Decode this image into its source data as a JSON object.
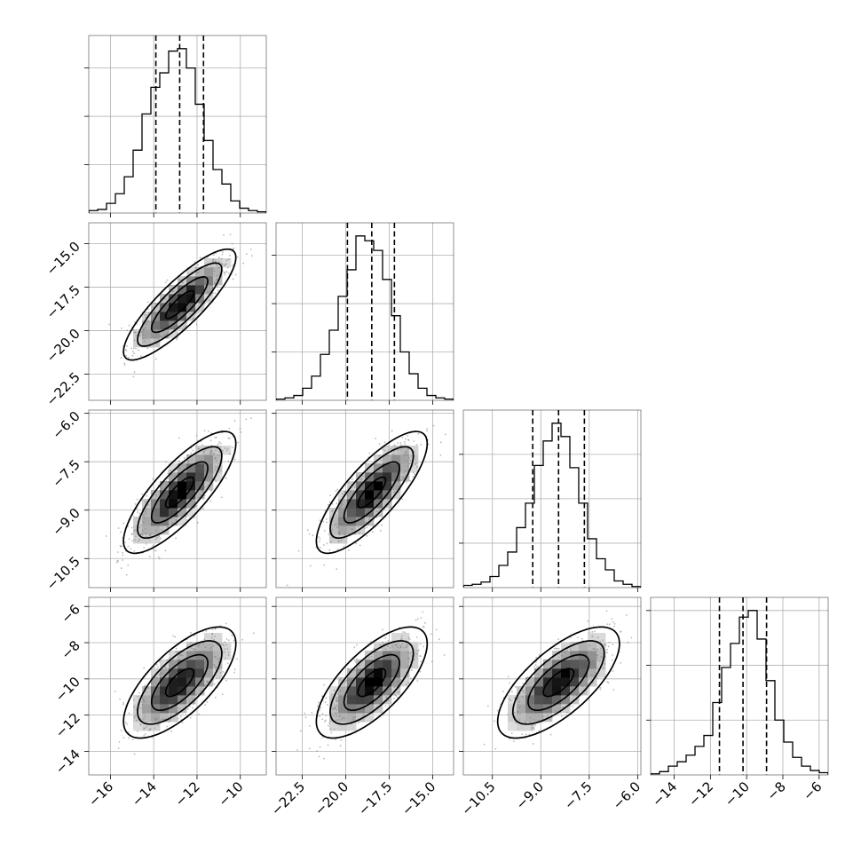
{
  "chart_data": {
    "type": "corner",
    "title": "",
    "grid": true,
    "parameters": [
      {
        "xlabel": "",
        "range": [
          -17.0,
          -8.8
        ],
        "ticks": [
          -16,
          -14,
          -12,
          -10
        ],
        "tick_labels": [
          "−16",
          "−14",
          "−12",
          "−10"
        ],
        "quantiles": [
          -13.9,
          -12.8,
          -11.7
        ],
        "histogram": {
          "bin_edges": [
            -17.0,
            -16.59,
            -16.18,
            -15.77,
            -15.36,
            -14.95,
            -14.54,
            -14.13,
            -13.72,
            -13.31,
            -12.9,
            -12.49,
            -12.08,
            -11.67,
            -11.26,
            -10.85,
            -10.44,
            -10.03,
            -9.62,
            -9.21,
            -8.8
          ],
          "counts": [
            2,
            3,
            8,
            16,
            30,
            52,
            82,
            104,
            116,
            134,
            136,
            120,
            90,
            60,
            36,
            24,
            10,
            4,
            2,
            1
          ]
        }
      },
      {
        "xlabel": "",
        "range": [
          -24.0,
          -13.8
        ],
        "ticks": [
          -22.5,
          -20.0,
          -17.5,
          -15.0
        ],
        "tick_labels": [
          "−22.5",
          "−20.0",
          "−17.5",
          "−15.0"
        ],
        "quantiles": [
          -19.9,
          -18.5,
          -17.2
        ],
        "histogram": {
          "bin_edges": [
            -24.0,
            -23.49,
            -22.98,
            -22.47,
            -21.96,
            -21.45,
            -20.94,
            -20.43,
            -19.92,
            -19.41,
            -18.9,
            -18.39,
            -17.88,
            -17.37,
            -16.86,
            -16.35,
            -15.84,
            -15.33,
            -14.82,
            -14.31,
            -13.8
          ],
          "counts": [
            1,
            2,
            4,
            10,
            20,
            38,
            58,
            86,
            108,
            136,
            132,
            124,
            100,
            70,
            40,
            22,
            10,
            4,
            2,
            1
          ]
        }
      },
      {
        "xlabel": "",
        "range": [
          -11.4,
          -5.9
        ],
        "ticks": [
          -10.5,
          -9.0,
          -7.5,
          -6.0
        ],
        "tick_labels": [
          "−10.5",
          "−9.0",
          "−7.5",
          "−6.0"
        ],
        "quantiles": [
          -9.25,
          -8.45,
          -7.65
        ],
        "histogram": {
          "bin_edges": [
            -11.4,
            -11.125,
            -10.85,
            -10.575,
            -10.3,
            -10.025,
            -9.75,
            -9.475,
            -9.2,
            -8.925,
            -8.65,
            -8.375,
            -8.1,
            -7.825,
            -7.55,
            -7.275,
            -7.0,
            -6.725,
            -6.45,
            -6.175,
            -5.9
          ],
          "counts": [
            2,
            3,
            5,
            10,
            20,
            32,
            54,
            76,
            110,
            132,
            148,
            136,
            108,
            76,
            44,
            26,
            16,
            6,
            3,
            1
          ]
        }
      },
      {
        "xlabel": "",
        "range": [
          -15.3,
          -5.5
        ],
        "ticks": [
          -14,
          -12,
          -10,
          -8,
          -6
        ],
        "tick_labels": [
          "−14",
          "−12",
          "−10",
          "−8",
          "−6"
        ],
        "quantiles": [
          -11.5,
          -10.2,
          -8.9
        ],
        "histogram": {
          "bin_edges": [
            -15.3,
            -14.81,
            -14.32,
            -13.83,
            -13.34,
            -12.85,
            -12.36,
            -11.87,
            -11.38,
            -10.89,
            -10.4,
            -9.91,
            -9.42,
            -8.93,
            -8.44,
            -7.95,
            -7.46,
            -6.97,
            -6.48,
            -5.99,
            -5.5
          ],
          "counts": [
            1,
            3,
            8,
            12,
            18,
            26,
            36,
            66,
            98,
            120,
            144,
            150,
            124,
            86,
            50,
            30,
            16,
            8,
            4,
            2
          ]
        }
      }
    ],
    "correlations": [
      {
        "x": 0,
        "y": 1,
        "rho": 0.85
      },
      {
        "x": 0,
        "y": 2,
        "rho": 0.8
      },
      {
        "x": 1,
        "y": 2,
        "rho": 0.8
      },
      {
        "x": 0,
        "y": 3,
        "rho": 0.7
      },
      {
        "x": 1,
        "y": 3,
        "rho": 0.7
      },
      {
        "x": 2,
        "y": 3,
        "rho": 0.7
      }
    ],
    "contour_levels_sigma": [
      0.5,
      1.0,
      1.5,
      2.0
    ],
    "colors": {
      "lines": "#000000",
      "samples": "#7f7f7f",
      "density_max": "#000000",
      "grid": "#b0b0b0"
    }
  }
}
